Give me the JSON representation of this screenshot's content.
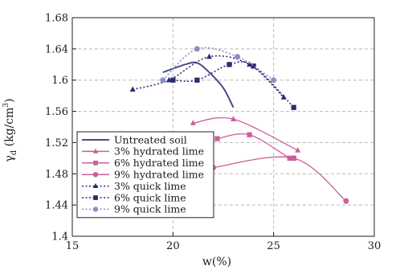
{
  "chart_data": {
    "type": "line",
    "xlabel": "w(%)",
    "ylabel": "γd (kg/cm³)",
    "ylabel_parts": {
      "symbol": "γ",
      "subscript": "d",
      "unit_base": " (kg/cm",
      "unit_exp": "3",
      "unit_end": ")"
    },
    "xlim": [
      15,
      30
    ],
    "ylim": [
      1.4,
      1.68
    ],
    "xticks": [
      15,
      20,
      25,
      30
    ],
    "yticks": [
      1.4,
      1.44,
      1.48,
      1.52,
      1.56,
      1.6,
      1.64,
      1.68
    ],
    "ytick_labels": [
      "1.4",
      "1.44",
      "1.48",
      "1.52",
      "1.56",
      "1.6",
      "1.64",
      "1.68"
    ],
    "grid": true,
    "legend_position": "bottom-left",
    "series": [
      {
        "name": "Untreated soil",
        "color": "#4a4a8e",
        "dash": "solid",
        "marker": "none",
        "x": [
          19.5,
          20.6,
          21.2,
          21.8,
          22.5,
          23.0
        ],
        "y": [
          1.61,
          1.62,
          1.622,
          1.61,
          1.59,
          1.565
        ]
      },
      {
        "name": "3% hydrated lime",
        "color": "#cc5e9a",
        "dash": "solid",
        "marker": "triangle",
        "x": [
          21.0,
          23.0,
          26.2
        ],
        "y": [
          1.545,
          1.55,
          1.51
        ]
      },
      {
        "name": "6% hydrated lime",
        "color": "#cc5e9a",
        "dash": "solid",
        "marker": "square",
        "x": [
          22.2,
          23.8,
          25.8,
          26.0
        ],
        "y": [
          1.525,
          1.53,
          1.5,
          1.5
        ]
      },
      {
        "name": "9% hydrated lime",
        "color": "#cc5e9a",
        "dash": "solid",
        "marker": "circle",
        "x": [
          22.0,
          26.0,
          28.6
        ],
        "y": [
          1.488,
          1.5,
          1.445
        ]
      },
      {
        "name": "3% quick lime",
        "color": "#2b2b73",
        "dash": "dotted",
        "marker": "triangle",
        "x": [
          18.0,
          19.8,
          21.8,
          23.8,
          25.5
        ],
        "y": [
          1.588,
          1.6,
          1.63,
          1.62,
          1.578
        ]
      },
      {
        "name": "6% quick lime",
        "color": "#2b2b73",
        "dash": "dotted",
        "marker": "square",
        "x": [
          20.0,
          21.2,
          22.8,
          24.0,
          26.0
        ],
        "y": [
          1.6,
          1.6,
          1.62,
          1.618,
          1.565
        ]
      },
      {
        "name": "9% quick lime",
        "color": "#8e8ec4",
        "dash": "dotted",
        "marker": "circle",
        "x": [
          19.5,
          21.2,
          23.2,
          25.0
        ],
        "y": [
          1.6,
          1.64,
          1.63,
          1.6
        ]
      }
    ]
  }
}
